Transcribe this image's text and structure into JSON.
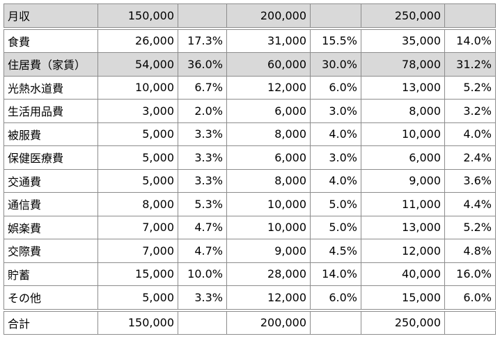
{
  "table": {
    "header": {
      "label": "月収",
      "values": [
        "150,000",
        "200,000",
        "250,000"
      ]
    },
    "rows": [
      [
        "食費",
        "26,000",
        "17.3%",
        "31,000",
        "15.5%",
        "35,000",
        "14.0%"
      ],
      [
        "住居費（家賃）",
        "54,000",
        "36.0%",
        "60,000",
        "30.0%",
        "78,000",
        "31.2%"
      ],
      [
        "光熱水道費",
        "10,000",
        "6.7%",
        "12,000",
        "6.0%",
        "13,000",
        "5.2%"
      ],
      [
        "生活用品費",
        "3,000",
        "2.0%",
        "6,000",
        "3.0%",
        "8,000",
        "3.2%"
      ],
      [
        "被服費",
        "5,000",
        "3.3%",
        "8,000",
        "4.0%",
        "10,000",
        "4.0%"
      ],
      [
        "保健医療費",
        "5,000",
        "3.3%",
        "6,000",
        "3.0%",
        "6,000",
        "2.4%"
      ],
      [
        "交通費",
        "5,000",
        "3.3%",
        "8,000",
        "4.0%",
        "9,000",
        "3.6%"
      ],
      [
        "通信費",
        "8,000",
        "5.3%",
        "10,000",
        "5.0%",
        "11,000",
        "4.4%"
      ],
      [
        "娯楽費",
        "7,000",
        "4.7%",
        "10,000",
        "5.0%",
        "13,000",
        "5.2%"
      ],
      [
        "交際費",
        "7,000",
        "4.7%",
        "9,000",
        "4.5%",
        "12,000",
        "4.8%"
      ],
      [
        "貯蓄",
        "15,000",
        "10.0%",
        "28,000",
        "14.0%",
        "40,000",
        "16.0%"
      ],
      [
        "その他",
        "5,000",
        "3.3%",
        "12,000",
        "6.0%",
        "15,000",
        "6.0%"
      ]
    ],
    "total": {
      "label": "合計",
      "values": [
        "150,000",
        "200,000",
        "250,000"
      ]
    }
  }
}
